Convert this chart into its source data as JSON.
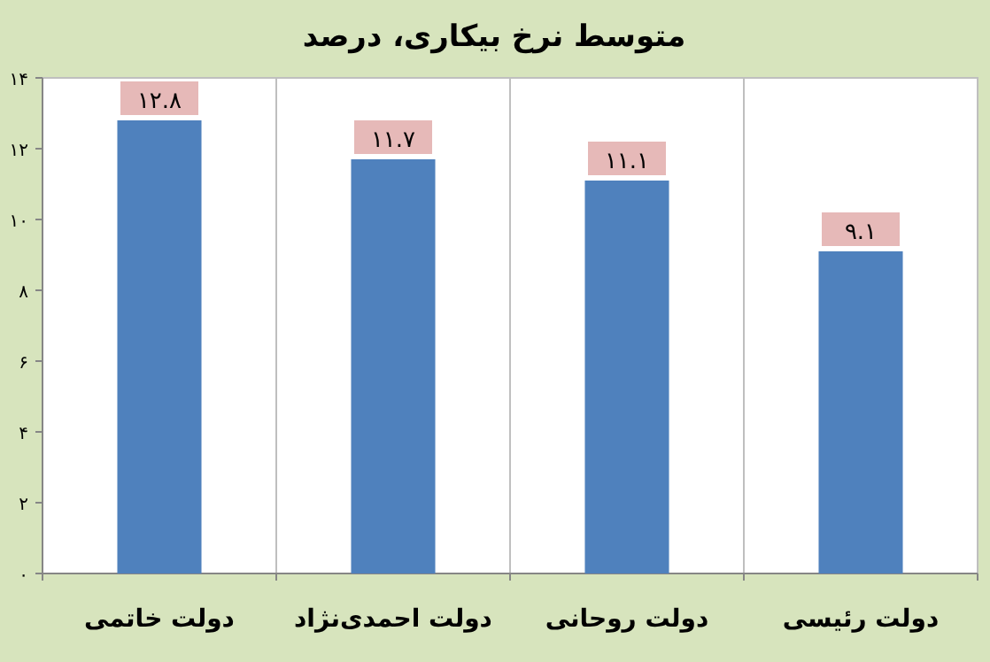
{
  "chart_data": {
    "type": "bar",
    "title": "متوسط نرخ بیکاری، درصد",
    "categories": [
      "دولت خاتمی",
      "دولت احمدی‌نژاد",
      "دولت روحانی",
      "دولت رئیسی"
    ],
    "values": [
      12.8,
      11.7,
      11.1,
      9.1
    ],
    "value_labels": [
      "۱۲.۸",
      "۱۱.۷",
      "۱۱.۱",
      "۹.۱"
    ],
    "color": "#4f81bd",
    "ylim": [
      0,
      14
    ],
    "yticks": [
      {
        "value": 0,
        "label": "۰"
      },
      {
        "value": 2,
        "label": "۲"
      },
      {
        "value": 4,
        "label": "۴"
      },
      {
        "value": 6,
        "label": "۶"
      },
      {
        "value": 8,
        "label": "۸"
      },
      {
        "value": 10,
        "label": "۱۰"
      },
      {
        "value": 12,
        "label": "۱۲"
      },
      {
        "value": 14,
        "label": "۱۴"
      }
    ],
    "grid": "x"
  }
}
